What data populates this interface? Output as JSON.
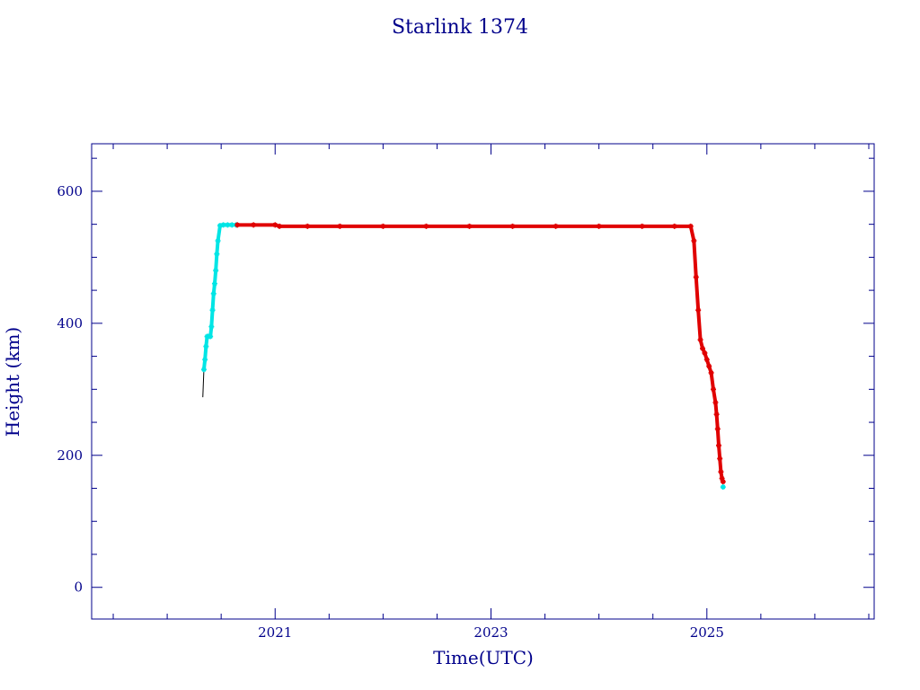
{
  "chart_data": {
    "type": "scatter",
    "title": "Starlink 1374",
    "xlabel": "Time(UTC)",
    "ylabel": "Height (km)",
    "xlim": [
      2019.3,
      2026.55
    ],
    "ylim": [
      -48,
      672
    ],
    "x_ticks": [
      "2021",
      "2023",
      "2025"
    ],
    "y_ticks": [
      "0",
      "200",
      "400",
      "600"
    ],
    "grid": false,
    "colors": {
      "axes": "#00008b",
      "text": "#00008b",
      "series_cyan": "#00e5e5",
      "series_red": "#e00000",
      "track": "#000000"
    },
    "series": [
      {
        "color": "cyan",
        "x": [
          2020.34,
          2020.35,
          2020.36,
          2020.37,
          2020.38,
          2020.4,
          2020.41,
          2020.42,
          2020.43,
          2020.44,
          2020.45,
          2020.46,
          2020.47,
          2020.49,
          2020.52,
          2020.56,
          2020.6,
          2020.64
        ],
        "values": [
          330,
          345,
          365,
          380,
          380,
          380,
          395,
          420,
          445,
          460,
          480,
          505,
          525,
          548,
          549,
          549,
          549,
          549
        ]
      },
      {
        "color": "red",
        "x": [
          2020.65,
          2020.8,
          2021.0,
          2021.04,
          2021.3,
          2021.6,
          2022.0,
          2022.4,
          2022.8,
          2023.2,
          2023.6,
          2024.0,
          2024.4,
          2024.7,
          2024.85,
          2024.88,
          2024.9,
          2024.92,
          2024.94,
          2024.96,
          2024.98,
          2025.0,
          2025.02,
          2025.04,
          2025.06,
          2025.08,
          2025.09,
          2025.1,
          2025.11,
          2025.12,
          2025.13,
          2025.14,
          2025.15
        ],
        "values": [
          549,
          549,
          549,
          547,
          547,
          547,
          547,
          547,
          547,
          547,
          547,
          547,
          547,
          547,
          547,
          525,
          470,
          420,
          375,
          362,
          355,
          345,
          335,
          325,
          300,
          280,
          262,
          240,
          215,
          195,
          175,
          165,
          160
        ]
      },
      {
        "color": "cyan",
        "x": [
          2025.15
        ],
        "values": [
          152
        ]
      }
    ],
    "track": {
      "x": [
        2020.33,
        2020.34
      ],
      "values": [
        288,
        330
      ]
    }
  }
}
